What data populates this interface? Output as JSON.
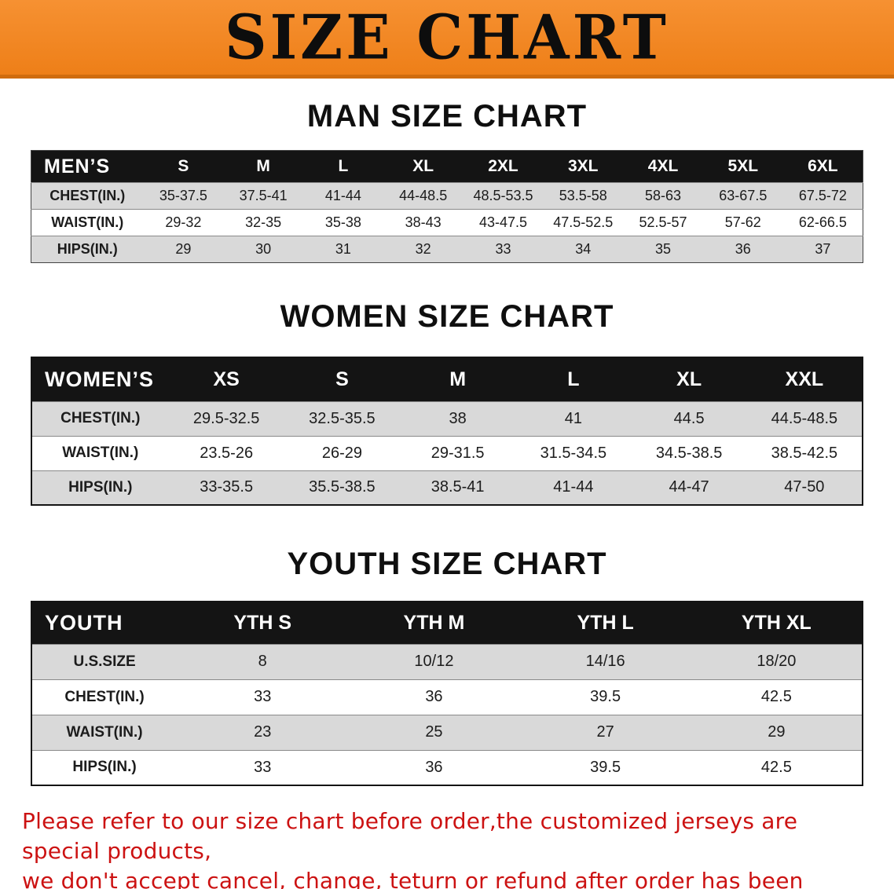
{
  "banner": {
    "title": "SIZE CHART"
  },
  "colors": {
    "banner_bg": "#ee7f18",
    "table_header_bg": "#141414",
    "stripe_row_bg": "#d9d9d9",
    "disclaimer_text": "#cc1212"
  },
  "sections": [
    {
      "heading": "MAN SIZE CHART",
      "table": {
        "name": "mens",
        "label_col_pct": 13.5,
        "header": [
          "MEN’S",
          "S",
          "M",
          "L",
          "XL",
          "2XL",
          "3XL",
          "4XL",
          "5XL",
          "6XL"
        ],
        "rows": [
          {
            "label": "CHEST(IN.)",
            "values": [
              "35-37.5",
              "37.5-41",
              "41-44",
              "44-48.5",
              "48.5-53.5",
              "53.5-58",
              "58-63",
              "63-67.5",
              "67.5-72"
            ]
          },
          {
            "label": "WAIST(IN.)",
            "values": [
              "29-32",
              "32-35",
              "35-38",
              "38-43",
              "43-47.5",
              "47.5-52.5",
              "52.5-57",
              "57-62",
              "62-66.5"
            ]
          },
          {
            "label": "HIPS(IN.)",
            "values": [
              "29",
              "30",
              "31",
              "32",
              "33",
              "34",
              "35",
              "36",
              "37"
            ]
          }
        ]
      }
    },
    {
      "heading": "WOMEN SIZE CHART",
      "table": {
        "name": "womens",
        "label_col_pct": 16.5,
        "header": [
          "WOMEN’S",
          "XS",
          "S",
          "M",
          "L",
          "XL",
          "XXL"
        ],
        "rows": [
          {
            "label": "CHEST(IN.)",
            "values": [
              "29.5-32.5",
              "32.5-35.5",
              "38",
              "41",
              "44.5",
              "44.5-48.5"
            ]
          },
          {
            "label": "WAIST(IN.)",
            "values": [
              "23.5-26",
              "26-29",
              "29-31.5",
              "31.5-34.5",
              "34.5-38.5",
              "38.5-42.5"
            ]
          },
          {
            "label": "HIPS(IN.)",
            "values": [
              "33-35.5",
              "35.5-38.5",
              "38.5-41",
              "41-44",
              "44-47",
              "47-50"
            ]
          }
        ]
      }
    },
    {
      "heading": "YOUTH SIZE CHART",
      "table": {
        "name": "youth",
        "label_col_pct": 17.5,
        "header": [
          "YOUTH",
          "YTH S",
          "YTH M",
          "YTH L",
          "YTH XL"
        ],
        "rows": [
          {
            "label": "U.S.SIZE",
            "values": [
              "8",
              "10/12",
              "14/16",
              "18/20"
            ]
          },
          {
            "label": "CHEST(IN.)",
            "values": [
              "33",
              "36",
              "39.5",
              "42.5"
            ]
          },
          {
            "label": "WAIST(IN.)",
            "values": [
              "23",
              "25",
              "27",
              "29"
            ]
          },
          {
            "label": "HIPS(IN.)",
            "values": [
              "33",
              "36",
              "39.5",
              "42.5"
            ]
          }
        ]
      }
    }
  ],
  "footer": {
    "lines": [
      "Please refer to our size chart before order,the customized jerseys are special products,",
      "we don't accept cancel, change, teturn or refund after order has been placed!"
    ]
  }
}
